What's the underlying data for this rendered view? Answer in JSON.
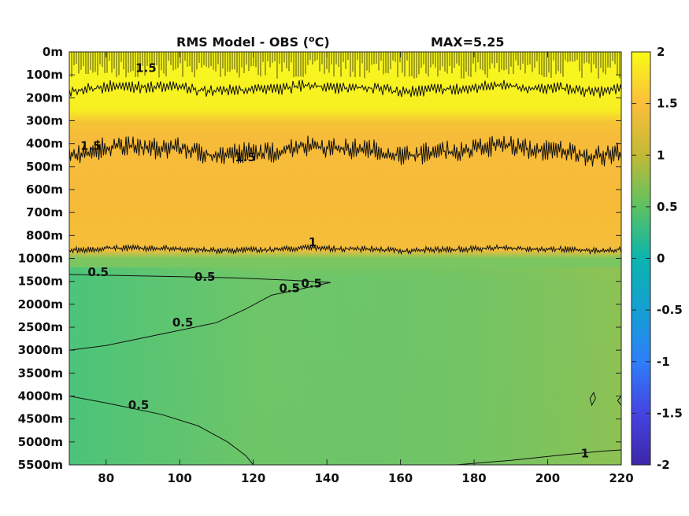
{
  "chart_data": {
    "type": "heatmap",
    "title": "RMS Model - OBS (",
    "title_sup": "o",
    "title_unit_end": "C)",
    "annotation": "MAX=5.25",
    "xlim": [
      70,
      220
    ],
    "x_ticks": [
      80,
      100,
      120,
      140,
      160,
      180,
      200,
      220
    ],
    "y_ticks": [
      "0m",
      "100m",
      "200m",
      "300m",
      "400m",
      "500m",
      "600m",
      "700m",
      "800m",
      "1000m",
      "1500m",
      "2000m",
      "2500m",
      "3000m",
      "3500m",
      "4000m",
      "4500m",
      "5000m",
      "5500m"
    ],
    "colorbar": {
      "range": [
        -2,
        2
      ],
      "ticks": [
        2,
        1.5,
        1,
        0.5,
        0,
        -0.5,
        -1,
        -1.5,
        -2
      ],
      "colormap": "parula"
    },
    "bands": [
      {
        "depth_from": "0m",
        "depth_to": "300m",
        "rms": 2.0
      },
      {
        "depth_from": "300m",
        "depth_to": "800m",
        "rms": 1.4
      },
      {
        "depth_from": "800m",
        "depth_to": "1000m",
        "rms": 1.3
      },
      {
        "depth_from": "1000m",
        "depth_to": "5500m",
        "rms": 0.7
      }
    ],
    "contour_labels": [
      {
        "text": "1.5",
        "depth_index": 0.8,
        "x": 88
      },
      {
        "text": "1.5",
        "depth_index": 4.2,
        "x": 73
      },
      {
        "text": "1.5",
        "depth_index": 4.7,
        "x": 115
      },
      {
        "text": "1",
        "depth_index": 8.4,
        "x": 135
      },
      {
        "text": "0.5",
        "depth_index": 9.7,
        "x": 75
      },
      {
        "text": "0.5",
        "depth_index": 9.9,
        "x": 104
      },
      {
        "text": "0.5",
        "depth_index": 10.4,
        "x": 127
      },
      {
        "text": "0.5",
        "depth_index": 10.2,
        "x": 133
      },
      {
        "text": "0.5",
        "depth_index": 11.9,
        "x": 98
      },
      {
        "text": "0.5",
        "depth_index": 15.5,
        "x": 86
      },
      {
        "text": "1",
        "depth_index": 17.6,
        "x": 209
      }
    ]
  }
}
